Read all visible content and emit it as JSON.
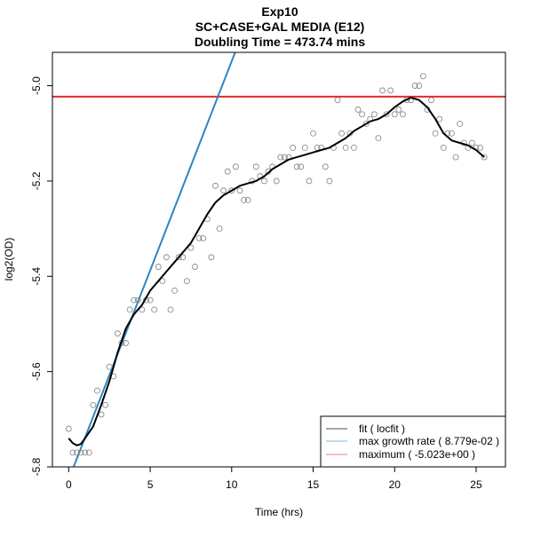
{
  "chart_data": {
    "type": "scatter",
    "title": "Exp10",
    "subtitle": "SC+CASE+GAL MEDIA (E12)",
    "subtitle2": "Doubling Time = 473.74 mins",
    "xlabel": "Time (hrs)",
    "ylabel": "log2(OD)",
    "xlim": [
      -1.0,
      26.8
    ],
    "ylim": [
      -5.8,
      -4.93
    ],
    "xticks": [
      0,
      5,
      10,
      15,
      20,
      25
    ],
    "yticks": [
      -5.8,
      -5.6,
      -5.4,
      -5.2,
      -5.0
    ],
    "xtick_labels": [
      "0",
      "5",
      "10",
      "15",
      "20",
      "25"
    ],
    "ytick_labels": [
      "-5.8",
      "-5.6",
      "-5.4",
      "-5.2",
      "-5.0"
    ],
    "grid": false,
    "legend_position": "bottom-right",
    "colors": {
      "points": "#7f7f7f",
      "fit": "#000000",
      "growth": "#2e86c1",
      "maximum": "#e0292a"
    },
    "legend": [
      {
        "label": "fit ( locfit )",
        "color": "#000000"
      },
      {
        "label": "max growth rate ( 8.779e-02 )",
        "color": "#2e86c1"
      },
      {
        "label": "maximum ( -5.023e+00 )",
        "color": "#e0292a"
      }
    ],
    "points": [
      [
        0,
        -5.72
      ],
      [
        0.25,
        -5.77
      ],
      [
        0.5,
        -5.77
      ],
      [
        0.75,
        -5.77
      ],
      [
        1.0,
        -5.77
      ],
      [
        1.25,
        -5.77
      ],
      [
        1.5,
        -5.67
      ],
      [
        1.75,
        -5.64
      ],
      [
        2.0,
        -5.69
      ],
      [
        2.25,
        -5.67
      ],
      [
        2.5,
        -5.59
      ],
      [
        2.75,
        -5.61
      ],
      [
        3.0,
        -5.52
      ],
      [
        3.25,
        -5.54
      ],
      [
        3.5,
        -5.54
      ],
      [
        3.75,
        -5.47
      ],
      [
        4.0,
        -5.45
      ],
      [
        4.25,
        -5.45
      ],
      [
        4.5,
        -5.47
      ],
      [
        4.75,
        -5.45
      ],
      [
        5.0,
        -5.45
      ],
      [
        5.25,
        -5.47
      ],
      [
        5.5,
        -5.38
      ],
      [
        5.75,
        -5.41
      ],
      [
        6.0,
        -5.36
      ],
      [
        6.25,
        -5.47
      ],
      [
        6.5,
        -5.43
      ],
      [
        6.75,
        -5.36
      ],
      [
        7.0,
        -5.36
      ],
      [
        7.25,
        -5.41
      ],
      [
        7.5,
        -5.34
      ],
      [
        7.75,
        -5.38
      ],
      [
        8.0,
        -5.32
      ],
      [
        8.25,
        -5.32
      ],
      [
        8.5,
        -5.28
      ],
      [
        8.75,
        -5.36
      ],
      [
        9.0,
        -5.21
      ],
      [
        9.25,
        -5.3
      ],
      [
        9.5,
        -5.22
      ],
      [
        9.75,
        -5.18
      ],
      [
        10.0,
        -5.22
      ],
      [
        10.25,
        -5.17
      ],
      [
        10.5,
        -5.22
      ],
      [
        10.75,
        -5.24
      ],
      [
        11.0,
        -5.24
      ],
      [
        11.25,
        -5.2
      ],
      [
        11.5,
        -5.17
      ],
      [
        11.75,
        -5.19
      ],
      [
        12.0,
        -5.2
      ],
      [
        12.25,
        -5.18
      ],
      [
        12.5,
        -5.17
      ],
      [
        12.75,
        -5.2
      ],
      [
        13.0,
        -5.15
      ],
      [
        13.25,
        -5.15
      ],
      [
        13.5,
        -5.15
      ],
      [
        13.75,
        -5.13
      ],
      [
        14.0,
        -5.17
      ],
      [
        14.25,
        -5.17
      ],
      [
        14.5,
        -5.13
      ],
      [
        14.75,
        -5.2
      ],
      [
        15.0,
        -5.1
      ],
      [
        15.25,
        -5.13
      ],
      [
        15.5,
        -5.13
      ],
      [
        15.75,
        -5.17
      ],
      [
        16.0,
        -5.2
      ],
      [
        16.25,
        -5.13
      ],
      [
        16.5,
        -5.03
      ],
      [
        16.75,
        -5.1
      ],
      [
        17.0,
        -5.13
      ],
      [
        17.25,
        -5.1
      ],
      [
        17.5,
        -5.13
      ],
      [
        17.75,
        -5.05
      ],
      [
        18.0,
        -5.06
      ],
      [
        18.25,
        -5.08
      ],
      [
        18.5,
        -5.07
      ],
      [
        18.75,
        -5.06
      ],
      [
        19.0,
        -5.11
      ],
      [
        19.25,
        -5.01
      ],
      [
        19.5,
        -5.06
      ],
      [
        19.75,
        -5.01
      ],
      [
        20.0,
        -5.06
      ],
      [
        20.25,
        -5.05
      ],
      [
        20.5,
        -5.06
      ],
      [
        20.75,
        -5.03
      ],
      [
        21.0,
        -5.03
      ],
      [
        21.25,
        -5.0
      ],
      [
        21.5,
        -5.0
      ],
      [
        21.75,
        -4.98
      ],
      [
        22.0,
        -5.05
      ],
      [
        22.25,
        -5.03
      ],
      [
        22.5,
        -5.1
      ],
      [
        22.75,
        -5.07
      ],
      [
        23.0,
        -5.13
      ],
      [
        23.25,
        -5.1
      ],
      [
        23.5,
        -5.1
      ],
      [
        23.75,
        -5.15
      ],
      [
        24.0,
        -5.08
      ],
      [
        24.25,
        -5.12
      ],
      [
        24.5,
        -5.13
      ],
      [
        24.75,
        -5.12
      ],
      [
        25.0,
        -5.13
      ],
      [
        25.25,
        -5.13
      ],
      [
        25.5,
        -5.15
      ]
    ],
    "fit_line": [
      [
        0,
        -5.74
      ],
      [
        0.25,
        -5.75
      ],
      [
        0.5,
        -5.755
      ],
      [
        0.75,
        -5.752
      ],
      [
        1.0,
        -5.74
      ],
      [
        1.5,
        -5.715
      ],
      [
        2.0,
        -5.67
      ],
      [
        2.5,
        -5.62
      ],
      [
        3.0,
        -5.56
      ],
      [
        3.5,
        -5.51
      ],
      [
        4.0,
        -5.48
      ],
      [
        4.5,
        -5.46
      ],
      [
        5.0,
        -5.43
      ],
      [
        5.5,
        -5.41
      ],
      [
        6.0,
        -5.39
      ],
      [
        6.5,
        -5.37
      ],
      [
        7.0,
        -5.35
      ],
      [
        7.5,
        -5.33
      ],
      [
        8.0,
        -5.3
      ],
      [
        8.5,
        -5.27
      ],
      [
        9.0,
        -5.245
      ],
      [
        9.5,
        -5.23
      ],
      [
        10.0,
        -5.22
      ],
      [
        10.5,
        -5.21
      ],
      [
        11.0,
        -5.205
      ],
      [
        11.5,
        -5.2
      ],
      [
        12.0,
        -5.19
      ],
      [
        12.5,
        -5.175
      ],
      [
        13.0,
        -5.165
      ],
      [
        13.5,
        -5.155
      ],
      [
        14.0,
        -5.15
      ],
      [
        14.5,
        -5.145
      ],
      [
        15.0,
        -5.14
      ],
      [
        15.5,
        -5.135
      ],
      [
        16.0,
        -5.13
      ],
      [
        16.5,
        -5.12
      ],
      [
        17.0,
        -5.11
      ],
      [
        17.5,
        -5.095
      ],
      [
        18.0,
        -5.085
      ],
      [
        18.5,
        -5.075
      ],
      [
        19.0,
        -5.07
      ],
      [
        19.5,
        -5.06
      ],
      [
        20.0,
        -5.045
      ],
      [
        20.5,
        -5.033
      ],
      [
        21.0,
        -5.025
      ],
      [
        21.5,
        -5.03
      ],
      [
        22.0,
        -5.045
      ],
      [
        22.5,
        -5.07
      ],
      [
        23.0,
        -5.1
      ],
      [
        23.5,
        -5.115
      ],
      [
        24.0,
        -5.12
      ],
      [
        24.5,
        -5.125
      ],
      [
        25.0,
        -5.135
      ],
      [
        25.5,
        -5.15
      ]
    ],
    "growth_line": {
      "slope": 0.08779,
      "intercept": -5.8265,
      "x_from": 0.2,
      "x_to": 10.5
    },
    "maximum_line": -5.023
  }
}
